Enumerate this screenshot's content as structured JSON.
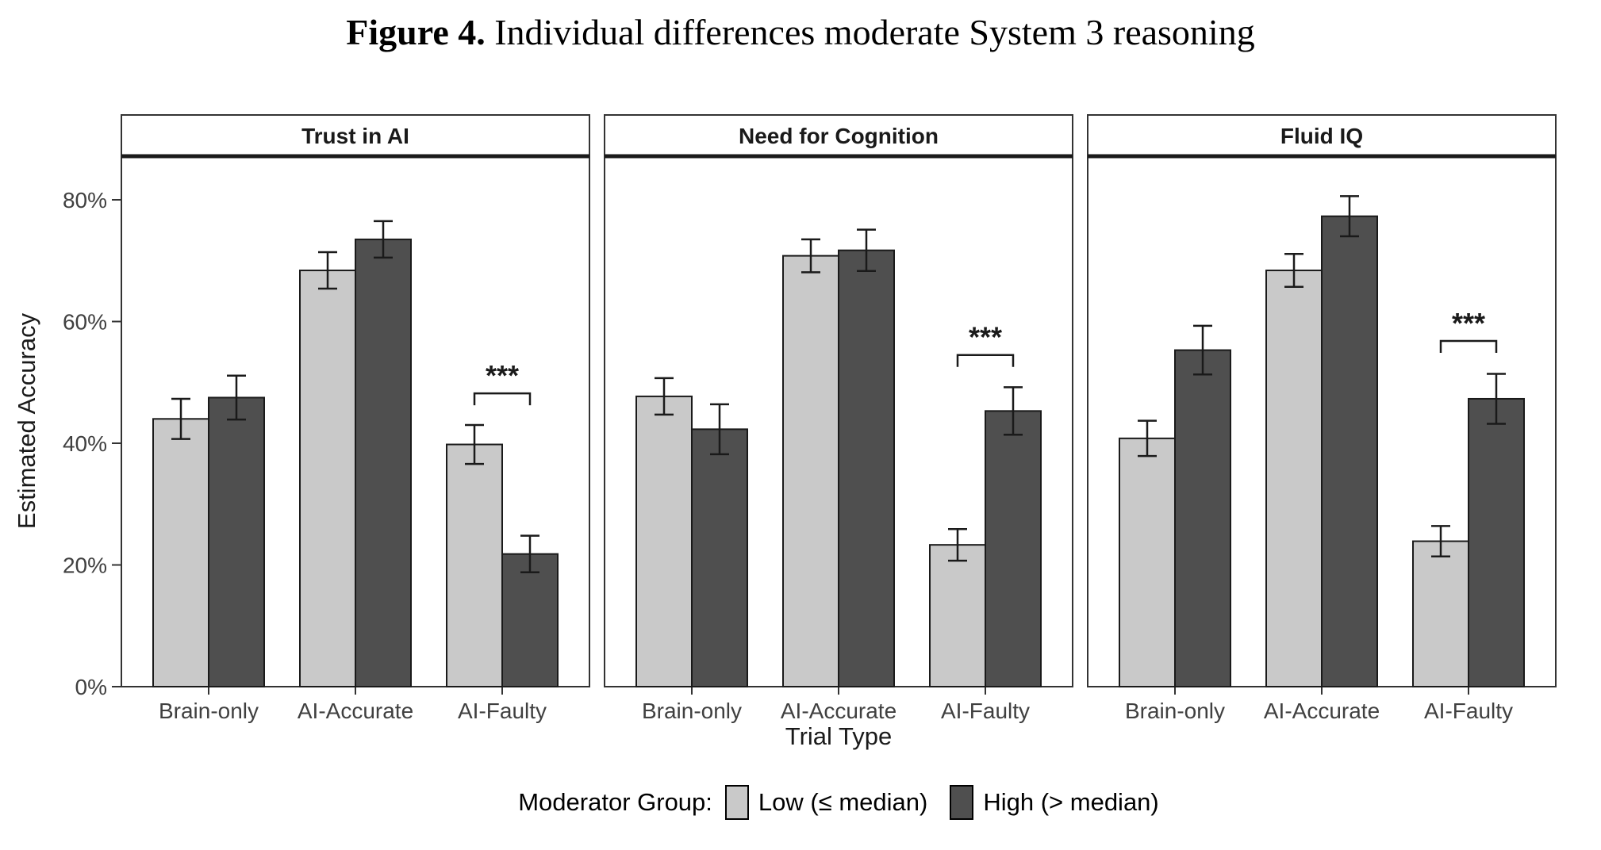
{
  "title": {
    "label": "Figure 4.",
    "text": " Individual differences moderate System 3 reasoning"
  },
  "chart_data": {
    "type": "bar",
    "title": "Figure 4. Individual differences moderate System 3 reasoning",
    "xlabel": "Trial Type",
    "ylabel": "Estimated Accuracy",
    "legend_title": "Moderator Group:",
    "legend_position": "bottom",
    "grid": false,
    "categories": [
      "Brain-only",
      "AI-Accurate",
      "AI-Faulty"
    ],
    "series_names": {
      "low": "Low (≤ median)",
      "high": "High (> median)"
    },
    "colors": {
      "low": "#c9c9c9",
      "high": "#4f4f4f"
    },
    "ylim": [
      0,
      87
    ],
    "ytick_values": [
      0,
      20,
      40,
      60,
      80
    ],
    "ytick_labels": [
      "0%",
      "20%",
      "40%",
      "60%",
      "80%"
    ],
    "units": "percent",
    "facets": [
      {
        "label": "Trust in AI",
        "values": {
          "low": [
            44.0,
            68.4,
            39.8
          ],
          "high": [
            47.5,
            73.5,
            21.8
          ]
        },
        "errors": {
          "low": [
            3.3,
            3.0,
            3.2
          ],
          "high": [
            3.6,
            3.0,
            3.0
          ]
        },
        "sig": {
          "category": "AI-Faulty",
          "label": "***",
          "y": 48.2
        }
      },
      {
        "label": "Need for Cognition",
        "values": {
          "low": [
            47.7,
            70.8,
            23.3
          ],
          "high": [
            42.3,
            71.7,
            45.3
          ]
        },
        "errors": {
          "low": [
            3.0,
            2.7,
            2.6
          ],
          "high": [
            4.1,
            3.4,
            3.9
          ]
        },
        "sig": {
          "category": "AI-Faulty",
          "label": "***",
          "y": 54.5
        }
      },
      {
        "label": "Fluid IQ",
        "values": {
          "low": [
            40.8,
            68.4,
            23.9
          ],
          "high": [
            55.3,
            77.3,
            47.3
          ]
        },
        "errors": {
          "low": [
            2.9,
            2.7,
            2.5
          ],
          "high": [
            4.0,
            3.3,
            4.1
          ]
        },
        "sig": {
          "category": "AI-Faulty",
          "label": "***",
          "y": 56.8
        }
      }
    ]
  }
}
